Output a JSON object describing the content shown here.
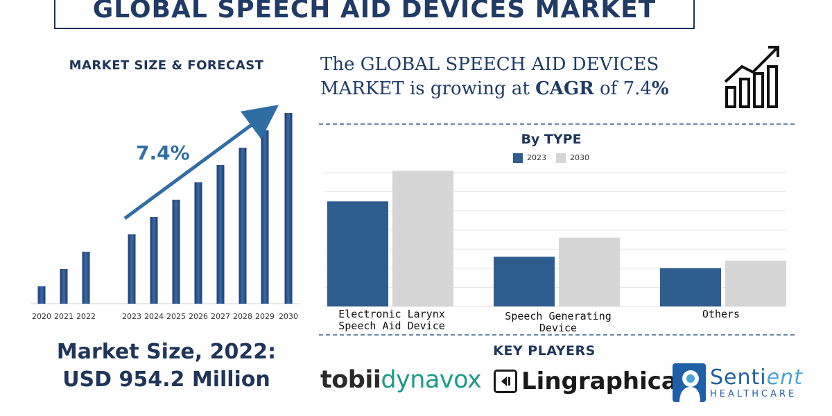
{
  "title": "GLOBAL SPEECH AID DEVICES MARKET",
  "left_panel": {
    "subtitle": "MARKET SIZE & FORECAST",
    "cagr_label": "7.4%",
    "market_size_line1": "Market Size, 2022:",
    "market_size_line2": "USD 954.2 Million"
  },
  "headline": {
    "part1": "The GLOBAL SPEECH AID DEVICES MARKET is growing at ",
    "bold1": "CAGR",
    "part2": " of 7.4",
    "bold2": "%"
  },
  "key_players": {
    "title": "KEY PLAYERS",
    "tobii_a": "tobii",
    "tobii_b": "dynavox",
    "lingraphica": "Lingraphica",
    "lingraphica_mark": "®",
    "sentient_a": "Senti",
    "sentient_b": "ent",
    "sentient_sub": "HEALTHCARE"
  },
  "colors": {
    "navy": "#1f3559",
    "bar_blue": "#2e5c8e",
    "bar_grey": "#d6d6d6",
    "accent": "#2f6ea5"
  },
  "chart_data": [
    {
      "type": "bar",
      "title": "MARKET SIZE & FORECAST",
      "categories": [
        "2020",
        "2021",
        "2022",
        "2023",
        "2024",
        "2025",
        "2026",
        "2027",
        "2028",
        "2029",
        "2030"
      ],
      "values": [
        1,
        2,
        3,
        4,
        5,
        6,
        7,
        8,
        9,
        10,
        11
      ],
      "annotation": "7.4%",
      "ylim": [
        0,
        11
      ]
    },
    {
      "type": "bar",
      "title": "By TYPE",
      "categories": [
        "Electronic Larynx Speech Aid Device",
        "Speech Generating Device",
        "Others"
      ],
      "category_lines": [
        [
          "Electronic Larynx",
          "Speech Aid Device"
        ],
        [
          "Speech Generating",
          "Device"
        ],
        [
          "Others"
        ]
      ],
      "series": [
        {
          "name": "2023",
          "values": [
            5.5,
            2.6,
            2.0
          ],
          "color": "#2e5c8e"
        },
        {
          "name": "2030",
          "values": [
            7.1,
            3.6,
            2.4
          ],
          "color": "#d6d6d6"
        }
      ],
      "ylim": [
        0,
        7
      ]
    }
  ]
}
